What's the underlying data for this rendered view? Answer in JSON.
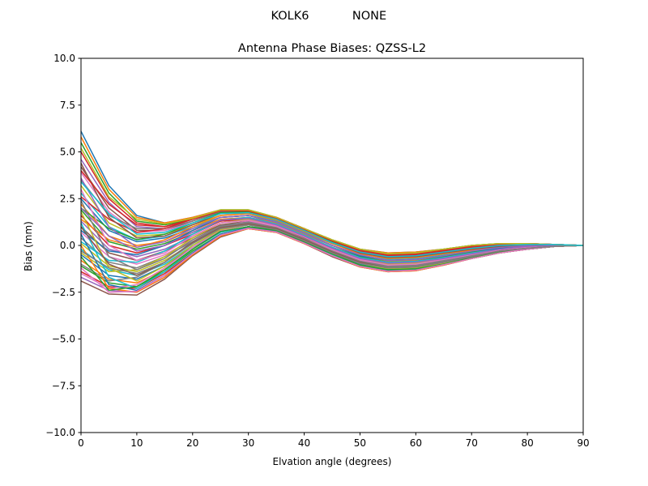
{
  "figure": {
    "station": "KOLK6",
    "radome": "NONE"
  },
  "chart_data": {
    "type": "line",
    "title": "Antenna Phase Biases: QZSS-L2",
    "xlabel": "Elvation angle (degrees)",
    "ylabel": "Bias (mm)",
    "xlim": [
      0,
      90
    ],
    "ylim": [
      -10,
      10
    ],
    "xticks": [
      0,
      10,
      20,
      30,
      40,
      50,
      60,
      70,
      80,
      90
    ],
    "yticks": [
      -10.0,
      -7.5,
      -5.0,
      -2.5,
      0.0,
      2.5,
      5.0,
      7.5,
      10.0
    ],
    "ytick_labels": [
      "−10.0",
      "−7.5",
      "−5.0",
      "−2.5",
      "0.0",
      "2.5",
      "5.0",
      "7.5",
      "10.0"
    ],
    "grid": false,
    "x": [
      0,
      5,
      10,
      15,
      20,
      25,
      30,
      35,
      40,
      45,
      50,
      55,
      60,
      65,
      70,
      75,
      80,
      85,
      90
    ],
    "colors": [
      "#1f77b4",
      "#ff7f0e",
      "#2ca02c",
      "#d62728",
      "#9467bd",
      "#8c564b",
      "#e377c2",
      "#7f7f7f",
      "#bcbd22",
      "#17becf"
    ],
    "series": [
      {
        "values": [
          6.1,
          3.2,
          1.6,
          1.2,
          1.5,
          1.9,
          1.9,
          1.5,
          0.9,
          0.3,
          -0.2,
          -0.4,
          -0.35,
          -0.2,
          0.0,
          0.1,
          0.1,
          0.05,
          0.0
        ]
      },
      {
        "values": [
          5.8,
          3.0,
          1.5,
          1.2,
          1.5,
          1.9,
          1.9,
          1.5,
          0.9,
          0.3,
          -0.2,
          -0.4,
          -0.35,
          -0.2,
          0.0,
          0.1,
          0.1,
          0.05,
          0.0
        ]
      },
      {
        "values": [
          5.5,
          2.8,
          1.3,
          1.1,
          1.4,
          1.9,
          1.9,
          1.5,
          0.9,
          0.3,
          -0.2,
          -0.45,
          -0.4,
          -0.2,
          0.0,
          0.1,
          0.1,
          0.05,
          0.0
        ]
      },
      {
        "values": [
          5.0,
          2.5,
          1.2,
          1.0,
          1.4,
          1.8,
          1.8,
          1.5,
          0.9,
          0.25,
          -0.25,
          -0.5,
          -0.45,
          -0.25,
          -0.05,
          0.05,
          0.1,
          0.05,
          0.0
        ]
      },
      {
        "values": [
          4.6,
          2.3,
          1.0,
          0.9,
          1.3,
          1.8,
          1.8,
          1.4,
          0.8,
          0.2,
          -0.3,
          -0.55,
          -0.5,
          -0.3,
          -0.1,
          0.05,
          0.1,
          0.05,
          0.0
        ]
      },
      {
        "values": [
          4.2,
          2.0,
          0.8,
          0.8,
          1.3,
          1.8,
          1.8,
          1.4,
          0.8,
          0.2,
          -0.3,
          -0.6,
          -0.55,
          -0.35,
          -0.1,
          0.0,
          0.05,
          0.05,
          0.0
        ]
      },
      {
        "values": [
          3.9,
          1.8,
          0.7,
          0.8,
          1.2,
          1.7,
          1.8,
          1.4,
          0.8,
          0.15,
          -0.35,
          -0.65,
          -0.6,
          -0.4,
          -0.15,
          0.0,
          0.05,
          0.05,
          0.0
        ]
      },
      {
        "values": [
          3.5,
          1.6,
          0.9,
          0.9,
          1.3,
          1.8,
          1.8,
          1.4,
          0.8,
          0.2,
          -0.3,
          -0.6,
          -0.55,
          -0.35,
          -0.1,
          0.0,
          0.05,
          0.05,
          0.0
        ]
      },
      {
        "values": [
          3.2,
          1.2,
          0.5,
          0.6,
          1.1,
          1.6,
          1.7,
          1.3,
          0.7,
          0.1,
          -0.4,
          -0.7,
          -0.65,
          -0.45,
          -0.2,
          -0.05,
          0.0,
          0.0,
          0.0
        ]
      },
      {
        "values": [
          2.8,
          1.0,
          0.3,
          0.5,
          1.0,
          1.5,
          1.6,
          1.3,
          0.7,
          0.1,
          -0.4,
          -0.75,
          -0.7,
          -0.5,
          -0.25,
          -0.1,
          0.0,
          0.0,
          0.0
        ]
      },
      {
        "values": [
          2.5,
          0.8,
          0.2,
          0.4,
          0.9,
          1.5,
          1.6,
          1.2,
          0.6,
          0.0,
          -0.5,
          -0.8,
          -0.75,
          -0.55,
          -0.3,
          -0.1,
          0.0,
          0.0,
          0.0
        ]
      },
      {
        "values": [
          2.2,
          0.5,
          0.0,
          0.2,
          0.8,
          1.4,
          1.5,
          1.2,
          0.6,
          0.0,
          -0.55,
          -0.85,
          -0.8,
          -0.6,
          -0.35,
          -0.15,
          -0.05,
          0.0,
          0.0
        ]
      },
      {
        "values": [
          1.9,
          0.2,
          -0.2,
          0.1,
          0.7,
          1.3,
          1.5,
          1.1,
          0.5,
          -0.1,
          -0.6,
          -0.9,
          -0.85,
          -0.6,
          -0.35,
          -0.15,
          -0.05,
          0.0,
          0.0
        ]
      },
      {
        "values": [
          1.6,
          0.0,
          -0.4,
          0.0,
          0.6,
          1.3,
          1.4,
          1.1,
          0.5,
          -0.1,
          -0.65,
          -0.95,
          -0.9,
          -0.65,
          -0.4,
          -0.2,
          -0.05,
          0.0,
          0.0
        ]
      },
      {
        "values": [
          1.3,
          -0.2,
          -0.6,
          -0.2,
          0.5,
          1.2,
          1.4,
          1.0,
          0.4,
          -0.2,
          -0.7,
          -1.0,
          -0.95,
          -0.7,
          -0.45,
          -0.2,
          -0.1,
          0.0,
          0.0
        ]
      },
      {
        "values": [
          1.0,
          -0.4,
          -0.8,
          -0.3,
          0.4,
          1.1,
          1.3,
          1.0,
          0.4,
          -0.2,
          -0.75,
          -1.05,
          -1.0,
          -0.75,
          -0.5,
          -0.25,
          -0.1,
          -0.05,
          0.0
        ]
      },
      {
        "values": [
          0.7,
          -0.6,
          -1.0,
          -0.5,
          0.3,
          1.0,
          1.3,
          1.0,
          0.35,
          -0.25,
          -0.8,
          -1.1,
          -1.05,
          -0.8,
          -0.5,
          -0.25,
          -0.1,
          -0.05,
          0.0
        ]
      },
      {
        "values": [
          0.4,
          -0.9,
          -1.2,
          -0.6,
          0.2,
          1.0,
          1.2,
          0.9,
          0.3,
          -0.3,
          -0.85,
          -1.15,
          -1.1,
          -0.85,
          -0.55,
          -0.3,
          -0.15,
          -0.05,
          0.0
        ]
      },
      {
        "values": [
          0.1,
          -1.1,
          -1.4,
          -0.8,
          0.1,
          0.9,
          1.1,
          0.9,
          0.3,
          -0.35,
          -0.9,
          -1.2,
          -1.15,
          -0.9,
          -0.6,
          -0.3,
          -0.15,
          -0.05,
          0.0
        ]
      },
      {
        "values": [
          -0.2,
          -1.3,
          -1.6,
          -1.0,
          0.0,
          0.8,
          1.1,
          0.8,
          0.25,
          -0.4,
          -0.95,
          -1.25,
          -1.2,
          -0.95,
          -0.6,
          -0.35,
          -0.15,
          -0.05,
          0.0
        ]
      },
      {
        "values": [
          -0.5,
          -1.6,
          -1.8,
          -1.1,
          -0.1,
          0.7,
          1.0,
          0.8,
          0.2,
          -0.45,
          -1.0,
          -1.3,
          -1.25,
          -0.95,
          -0.65,
          -0.35,
          -0.2,
          -0.05,
          0.0
        ]
      },
      {
        "values": [
          -0.8,
          -1.8,
          -2.0,
          -1.3,
          -0.2,
          0.7,
          1.0,
          0.8,
          0.2,
          -0.5,
          -1.05,
          -1.3,
          -1.3,
          -1.0,
          -0.65,
          -0.35,
          -0.2,
          -0.05,
          0.0
        ]
      },
      {
        "values": [
          -1.1,
          -2.0,
          -2.2,
          -1.4,
          -0.3,
          0.6,
          0.95,
          0.75,
          0.15,
          -0.5,
          -1.1,
          -1.35,
          -1.3,
          -1.0,
          -0.7,
          -0.4,
          -0.2,
          -0.05,
          0.0
        ]
      },
      {
        "values": [
          -1.4,
          -2.2,
          -2.3,
          -1.5,
          -0.4,
          0.5,
          0.9,
          0.75,
          0.15,
          -0.55,
          -1.1,
          -1.35,
          -1.3,
          -1.05,
          -0.7,
          -0.4,
          -0.2,
          -0.05,
          0.0
        ]
      },
      {
        "values": [
          -1.7,
          -2.4,
          -2.5,
          -1.7,
          -0.5,
          0.5,
          0.9,
          0.7,
          0.1,
          -0.55,
          -1.15,
          -1.4,
          -1.35,
          -1.05,
          -0.7,
          -0.4,
          -0.2,
          -0.05,
          0.0
        ]
      },
      {
        "values": [
          -1.9,
          -2.6,
          -2.65,
          -1.8,
          -0.55,
          0.45,
          0.9,
          0.7,
          0.1,
          -0.6,
          -1.15,
          -1.4,
          -1.35,
          -1.05,
          -0.7,
          -0.4,
          -0.2,
          -0.05,
          0.0
        ]
      },
      {
        "values": [
          -1.5,
          -2.3,
          -2.1,
          -1.2,
          -0.1,
          0.8,
          1.1,
          0.85,
          0.25,
          -0.4,
          -0.95,
          -1.2,
          -1.15,
          -0.9,
          -0.6,
          -0.3,
          -0.15,
          -0.05,
          0.0
        ]
      },
      {
        "values": [
          -1.0,
          -1.9,
          -1.7,
          -0.9,
          0.2,
          1.0,
          1.25,
          0.95,
          0.35,
          -0.3,
          -0.85,
          -1.1,
          -1.05,
          -0.8,
          -0.5,
          -0.25,
          -0.1,
          -0.05,
          0.0
        ]
      },
      {
        "values": [
          -0.4,
          -1.4,
          -1.3,
          -0.6,
          0.4,
          1.2,
          1.4,
          1.05,
          0.45,
          -0.2,
          -0.75,
          -1.0,
          -0.95,
          -0.7,
          -0.45,
          -0.2,
          -0.1,
          0.0,
          0.0
        ]
      },
      {
        "values": [
          0.2,
          -0.8,
          -0.9,
          -0.3,
          0.6,
          1.35,
          1.5,
          1.15,
          0.55,
          -0.1,
          -0.65,
          -0.9,
          -0.85,
          -0.65,
          -0.4,
          -0.2,
          -0.05,
          0.0,
          0.0
        ]
      },
      {
        "values": [
          0.8,
          -0.3,
          -0.5,
          0.0,
          0.8,
          1.5,
          1.6,
          1.25,
          0.65,
          0.0,
          -0.55,
          -0.8,
          -0.75,
          -0.55,
          -0.3,
          -0.15,
          -0.05,
          0.0,
          0.0
        ]
      },
      {
        "values": [
          1.4,
          0.3,
          -0.1,
          0.3,
          1.0,
          1.6,
          1.7,
          1.35,
          0.75,
          0.1,
          -0.45,
          -0.7,
          -0.65,
          -0.45,
          -0.25,
          -0.1,
          0.0,
          0.0,
          0.0
        ]
      },
      {
        "values": [
          2.0,
          0.9,
          0.3,
          0.6,
          1.2,
          1.75,
          1.8,
          1.45,
          0.85,
          0.2,
          -0.35,
          -0.6,
          -0.55,
          -0.35,
          -0.15,
          -0.05,
          0.05,
          0.0,
          0.0
        ]
      },
      {
        "values": [
          2.6,
          1.4,
          0.7,
          0.9,
          1.4,
          1.85,
          1.85,
          1.5,
          0.9,
          0.25,
          -0.3,
          -0.55,
          -0.5,
          -0.3,
          -0.1,
          0.0,
          0.05,
          0.05,
          0.0
        ]
      },
      {
        "values": [
          3.6,
          1.0,
          -0.1,
          0.2,
          0.9,
          1.5,
          1.6,
          1.25,
          0.65,
          0.0,
          -0.5,
          -0.8,
          -0.75,
          -0.55,
          -0.3,
          -0.1,
          0.0,
          0.0,
          0.0
        ]
      },
      {
        "values": [
          4.4,
          1.5,
          0.4,
          0.5,
          1.1,
          1.7,
          1.75,
          1.4,
          0.8,
          0.15,
          -0.4,
          -0.65,
          -0.6,
          -0.4,
          -0.2,
          -0.05,
          0.05,
          0.0,
          0.0
        ]
      },
      {
        "values": [
          3.0,
          0.0,
          -0.8,
          -0.4,
          0.5,
          1.2,
          1.35,
          1.05,
          0.45,
          -0.2,
          -0.75,
          -1.05,
          -1.0,
          -0.75,
          -0.5,
          -0.25,
          -0.1,
          -0.05,
          0.0
        ]
      },
      {
        "values": [
          2.4,
          -0.6,
          -1.3,
          -0.7,
          0.3,
          1.05,
          1.25,
          0.95,
          0.35,
          -0.3,
          -0.85,
          -1.15,
          -1.1,
          -0.85,
          -0.55,
          -0.3,
          -0.15,
          -0.05,
          0.0
        ]
      },
      {
        "values": [
          1.8,
          -1.2,
          -1.9,
          -1.1,
          0.0,
          0.85,
          1.1,
          0.85,
          0.25,
          -0.4,
          -0.95,
          -1.25,
          -1.2,
          -0.95,
          -0.6,
          -0.35,
          -0.15,
          -0.05,
          0.0
        ]
      },
      {
        "values": [
          1.2,
          -1.7,
          -2.3,
          -1.4,
          -0.2,
          0.7,
          1.0,
          0.8,
          0.2,
          -0.5,
          -1.05,
          -1.3,
          -1.25,
          -1.0,
          -0.65,
          -0.35,
          -0.2,
          -0.05,
          0.0
        ]
      },
      {
        "values": [
          0.6,
          -2.1,
          -2.4,
          -1.6,
          -0.4,
          0.6,
          0.95,
          0.75,
          0.15,
          -0.55,
          -1.1,
          -1.35,
          -1.3,
          -1.0,
          -0.7,
          -0.4,
          -0.2,
          -0.05,
          0.0
        ]
      },
      {
        "values": [
          0.0,
          -2.3,
          -2.5,
          -1.7,
          -0.5,
          0.5,
          0.9,
          0.7,
          0.1,
          -0.55,
          -1.15,
          -1.4,
          -1.35,
          -1.05,
          -0.7,
          -0.4,
          -0.2,
          -0.05,
          0.0
        ]
      },
      {
        "values": [
          -0.6,
          -2.4,
          -2.2,
          -1.3,
          -0.2,
          0.75,
          1.0,
          0.8,
          0.2,
          -0.45,
          -1.05,
          -1.3,
          -1.25,
          -1.0,
          -0.65,
          -0.35,
          -0.2,
          -0.05,
          0.0
        ]
      },
      {
        "values": [
          4.0,
          2.2,
          1.1,
          1.0,
          1.4,
          1.85,
          1.85,
          1.45,
          0.85,
          0.25,
          -0.3,
          -0.55,
          -0.5,
          -0.3,
          -0.1,
          0.05,
          0.1,
          0.05,
          0.0
        ]
      },
      {
        "values": [
          2.0,
          0.5,
          -0.3,
          0.0,
          0.7,
          1.35,
          1.45,
          1.1,
          0.5,
          -0.15,
          -0.7,
          -0.95,
          -0.9,
          -0.7,
          -0.45,
          -0.2,
          -0.05,
          0.0,
          0.0
        ]
      },
      {
        "values": [
          1.0,
          -1.0,
          -1.6,
          -0.9,
          0.15,
          0.95,
          1.15,
          0.9,
          0.3,
          -0.35,
          -0.9,
          -1.2,
          -1.15,
          -0.9,
          -0.6,
          -0.3,
          -0.15,
          -0.05,
          0.0
        ]
      },
      {
        "values": [
          -1.2,
          -2.5,
          -2.45,
          -1.6,
          -0.45,
          0.55,
          0.92,
          0.72,
          0.12,
          -0.55,
          -1.12,
          -1.38,
          -1.32,
          -1.03,
          -0.7,
          -0.4,
          -0.2,
          -0.05,
          0.0
        ]
      },
      {
        "values": [
          -0.3,
          -1.2,
          -1.5,
          -0.9,
          0.1,
          0.9,
          1.1,
          0.85,
          0.25,
          -0.4,
          -0.95,
          -1.2,
          -1.15,
          -0.9,
          -0.6,
          -0.3,
          -0.15,
          -0.05,
          0.0
        ]
      },
      {
        "values": [
          5.2,
          2.6,
          1.4,
          1.15,
          1.45,
          1.9,
          1.9,
          1.5,
          0.9,
          0.3,
          -0.2,
          -0.45,
          -0.4,
          -0.2,
          0.0,
          0.1,
          0.1,
          0.05,
          0.0
        ]
      },
      {
        "values": [
          3.4,
          1.7,
          0.6,
          0.7,
          1.2,
          1.7,
          1.75,
          1.4,
          0.8,
          0.15,
          -0.35,
          -0.6,
          -0.55,
          -0.35,
          -0.15,
          0.0,
          0.05,
          0.05,
          0.0
        ]
      }
    ]
  }
}
